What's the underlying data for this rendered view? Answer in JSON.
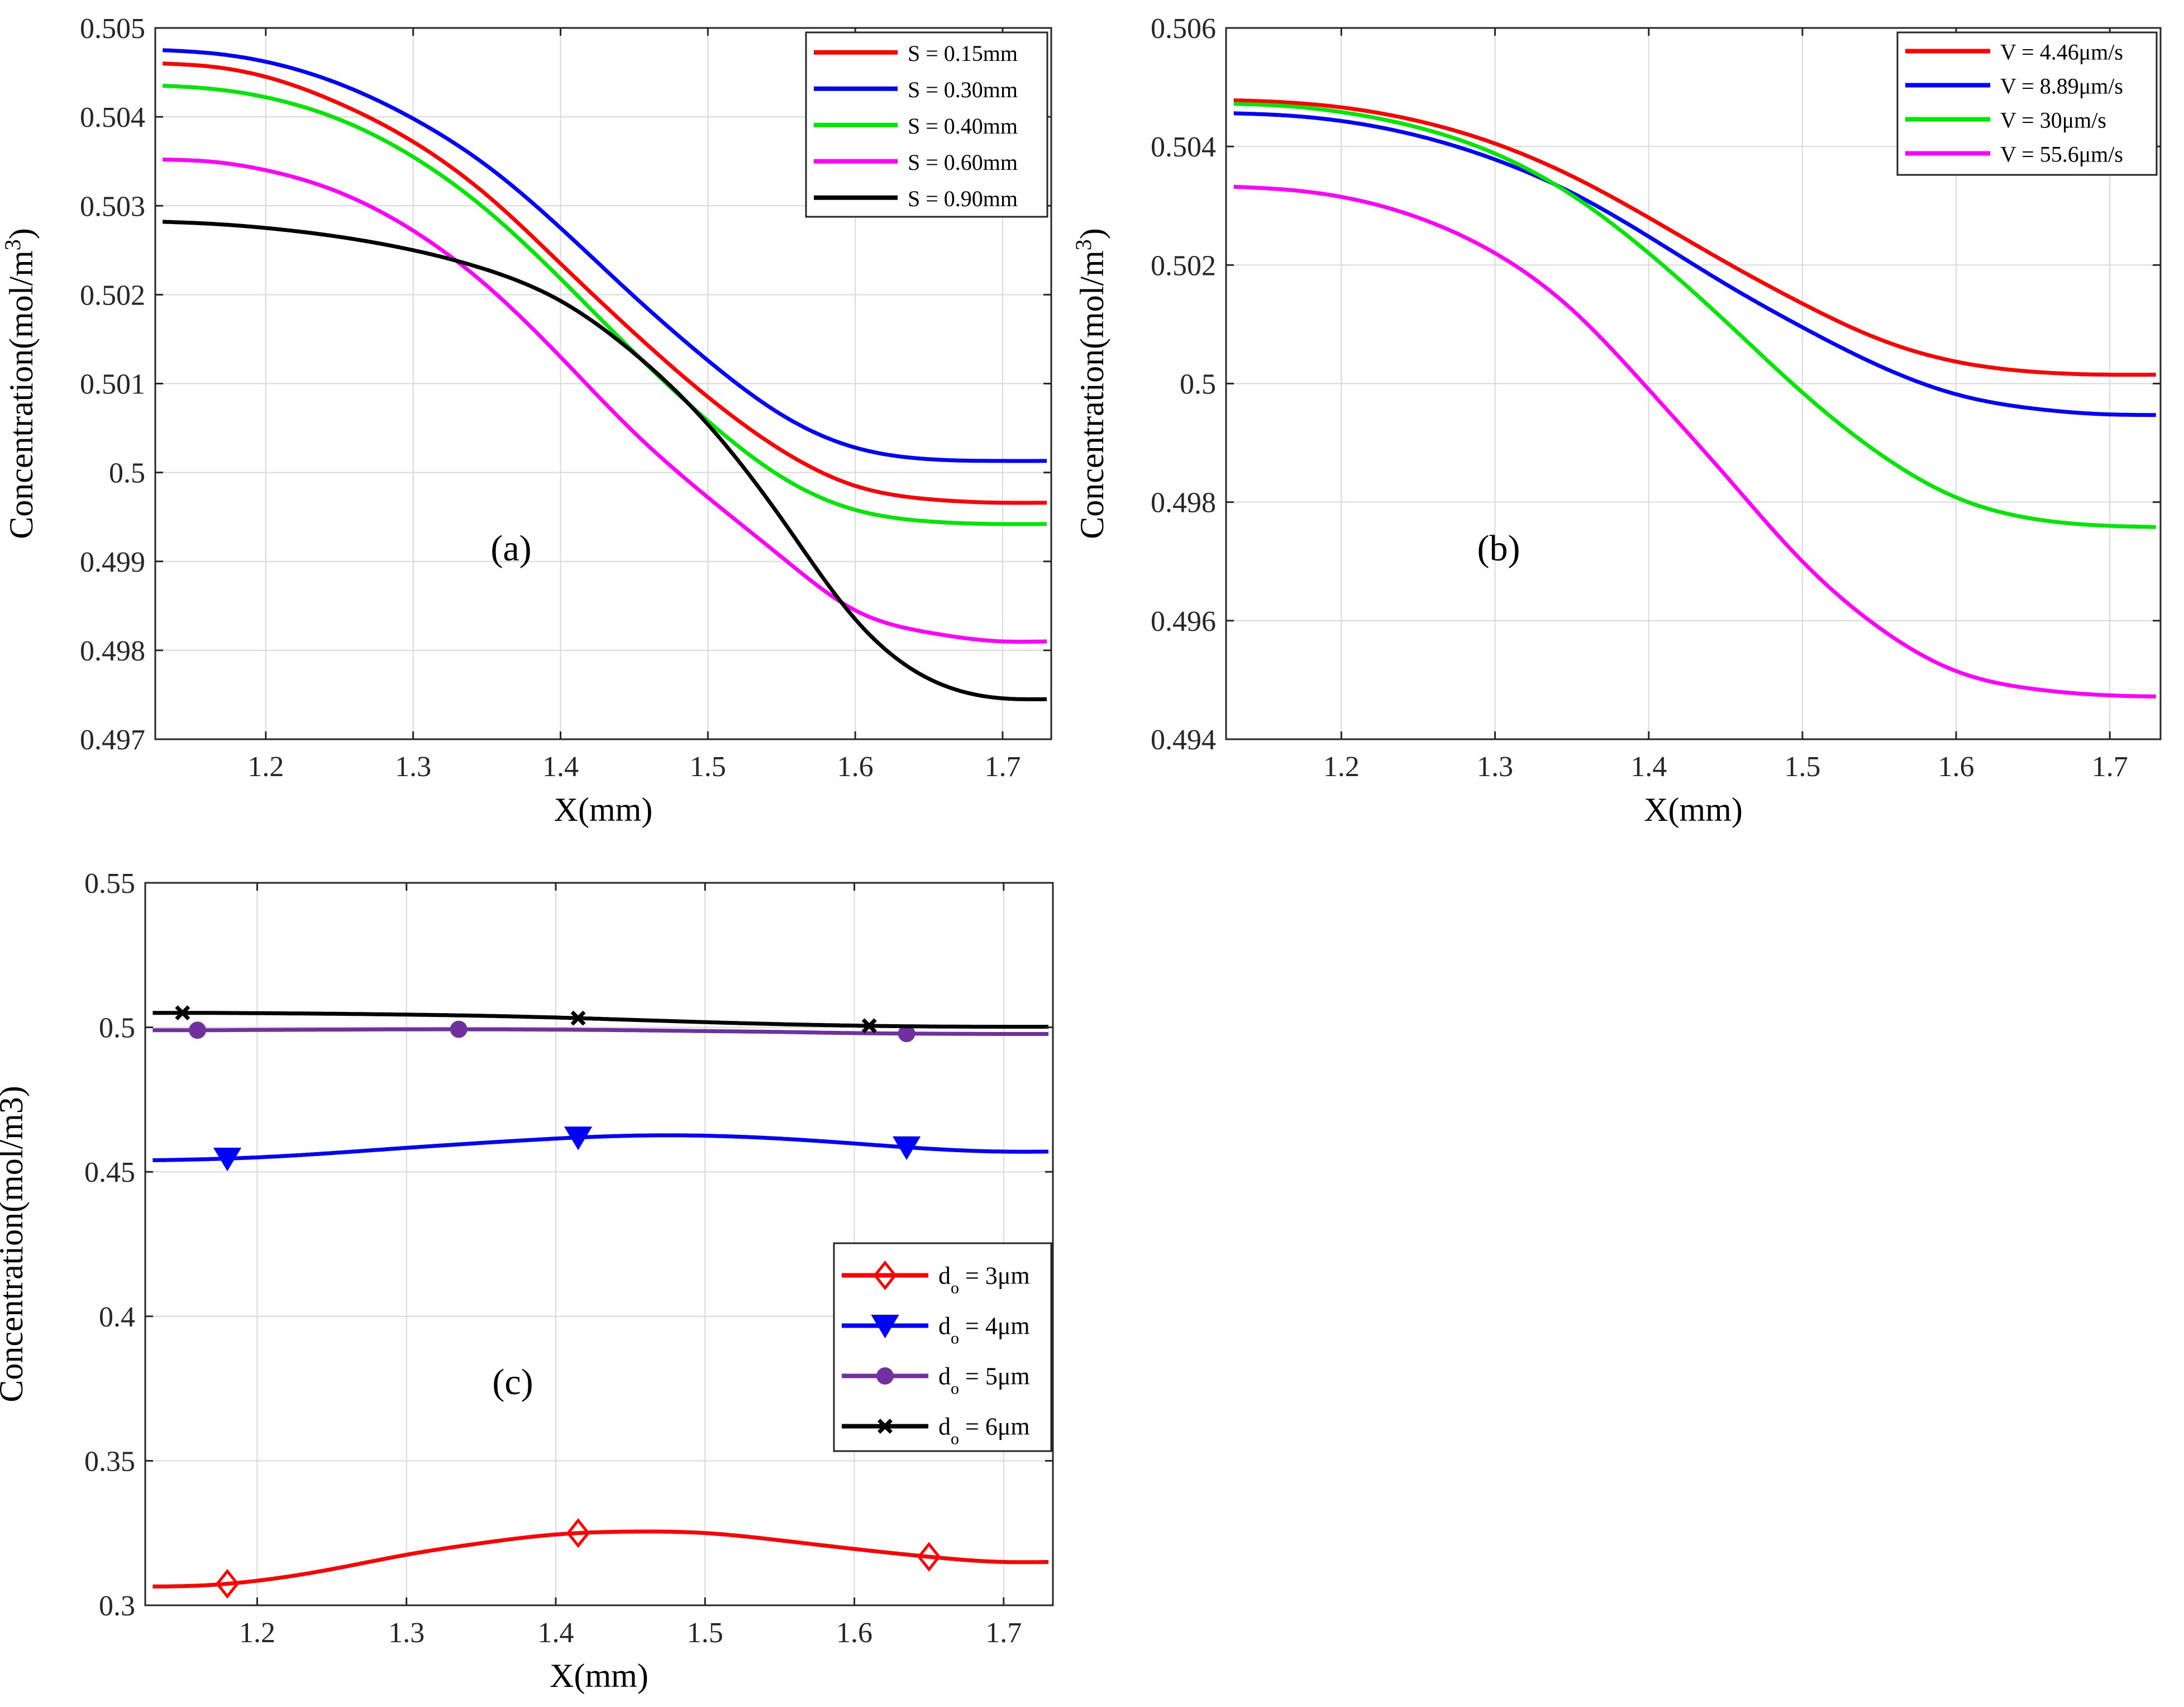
{
  "chart_data": [
    {
      "id": "a",
      "type": "line",
      "panel_label": "(a)",
      "xlabel": "X(mm)",
      "ylabel": {
        "main": "Concentration(mol/m",
        "sup": "3",
        "close": ")"
      },
      "xlim": [
        1.125,
        1.733
      ],
      "ylim": [
        0.497,
        0.505
      ],
      "xticks": [
        1.2,
        1.3,
        1.4,
        1.5,
        1.6,
        1.7
      ],
      "xtick_labels": [
        "1.2",
        "1.3",
        "1.4",
        "1.5",
        "1.6",
        "1.7"
      ],
      "yticks": [
        0.497,
        0.498,
        0.499,
        0.5,
        0.501,
        0.502,
        0.503,
        0.504,
        0.505
      ],
      "ytick_labels": [
        "0.497",
        "0.498",
        "0.499",
        "0.5",
        "0.501",
        "0.502",
        "0.503",
        "0.504",
        "0.505"
      ],
      "grid": true,
      "legend_position": "top-right",
      "x": [
        1.13,
        1.16,
        1.2,
        1.25,
        1.3,
        1.35,
        1.4,
        1.45,
        1.5,
        1.55,
        1.6,
        1.65,
        1.7,
        1.73
      ],
      "series": [
        {
          "name": "S = 0.15mm",
          "color": "#ff0000",
          "marker": null,
          "values": [
            0.5046,
            0.50457,
            0.50445,
            0.50415,
            0.50372,
            0.50312,
            0.50235,
            0.50157,
            0.50085,
            0.50025,
            0.49985,
            0.4997,
            0.49966,
            0.49966
          ]
        },
        {
          "name": "S = 0.30mm",
          "color": "#0000ff",
          "marker": null,
          "values": [
            0.50475,
            0.50472,
            0.50462,
            0.50437,
            0.50398,
            0.50345,
            0.50275,
            0.50198,
            0.50126,
            0.50065,
            0.50028,
            0.50015,
            0.50013,
            0.50013
          ]
        },
        {
          "name": "S = 0.40mm",
          "color": "#00e600",
          "marker": null,
          "values": [
            0.50435,
            0.50432,
            0.50422,
            0.50397,
            0.50355,
            0.50295,
            0.50218,
            0.50135,
            0.50058,
            0.49995,
            0.49958,
            0.49945,
            0.49942,
            0.49942
          ]
        },
        {
          "name": "S = 0.60mm",
          "color": "#ff00ff",
          "marker": null,
          "values": [
            0.50352,
            0.5035,
            0.5034,
            0.50315,
            0.50272,
            0.5021,
            0.5013,
            0.50045,
            0.49972,
            0.49905,
            0.49845,
            0.4982,
            0.4981,
            0.4981
          ]
        },
        {
          "name": "S = 0.90mm",
          "color": "#000000",
          "marker": null,
          "values": [
            0.50282,
            0.5028,
            0.50275,
            0.50265,
            0.5025,
            0.50228,
            0.50193,
            0.50134,
            0.50054,
            0.49948,
            0.49835,
            0.49768,
            0.49746,
            0.49745
          ]
        }
      ]
    },
    {
      "id": "b",
      "type": "line",
      "panel_label": "(b)",
      "xlabel": "X(mm)",
      "ylabel": {
        "main": "Concentration(mol/m",
        "sup": "3",
        "close": ")"
      },
      "xlim": [
        1.125,
        1.733
      ],
      "ylim": [
        0.494,
        0.506
      ],
      "xticks": [
        1.2,
        1.3,
        1.4,
        1.5,
        1.6,
        1.7
      ],
      "xtick_labels": [
        "1.2",
        "1.3",
        "1.4",
        "1.5",
        "1.6",
        "1.7"
      ],
      "yticks": [
        0.494,
        0.496,
        0.498,
        0.5,
        0.502,
        0.504,
        0.506
      ],
      "ytick_labels": [
        "0.494",
        "0.496",
        "0.498",
        "0.5",
        "0.502",
        "0.504",
        "0.506"
      ],
      "grid": true,
      "legend_position": "top-right",
      "x": [
        1.13,
        1.16,
        1.2,
        1.25,
        1.3,
        1.35,
        1.4,
        1.45,
        1.5,
        1.55,
        1.6,
        1.65,
        1.7,
        1.73
      ],
      "series": [
        {
          "name": "V = 4.46μm/s",
          "color": "#ff0000",
          "marker": null,
          "values": [
            0.50478,
            0.50475,
            0.50466,
            0.50443,
            0.50405,
            0.5035,
            0.5028,
            0.50205,
            0.50135,
            0.50075,
            0.50037,
            0.5002,
            0.50015,
            0.50015
          ]
        },
        {
          "name": "V = 8.89μm/s",
          "color": "#0000ff",
          "marker": null,
          "values": [
            0.50456,
            0.50453,
            0.50443,
            0.50418,
            0.50378,
            0.50322,
            0.50248,
            0.50168,
            0.50095,
            0.5003,
            0.49982,
            0.49958,
            0.49948,
            0.49947
          ]
        },
        {
          "name": "V = 30μm/s",
          "color": "#00e600",
          "marker": null,
          "values": [
            0.50472,
            0.50469,
            0.50458,
            0.50432,
            0.50388,
            0.50318,
            0.5022,
            0.50105,
            0.49985,
            0.49882,
            0.49808,
            0.49772,
            0.4976,
            0.49758
          ]
        },
        {
          "name": "V = 55.6μm/s",
          "color": "#ff00ff",
          "marker": null,
          "values": [
            0.50332,
            0.50328,
            0.50315,
            0.5028,
            0.5022,
            0.50125,
            0.4999,
            0.49845,
            0.497,
            0.49588,
            0.49515,
            0.49485,
            0.49474,
            0.49472
          ]
        }
      ]
    },
    {
      "id": "c",
      "type": "line",
      "panel_label": "(c)",
      "xlabel": "X(mm)",
      "ylabel": {
        "main": "Concentration(mol/m3)",
        "sup": "",
        "close": ""
      },
      "xlim": [
        1.125,
        1.733
      ],
      "ylim": [
        0.3,
        0.55
      ],
      "xticks": [
        1.2,
        1.3,
        1.4,
        1.5,
        1.6,
        1.7
      ],
      "xtick_labels": [
        "1.2",
        "1.3",
        "1.4",
        "1.5",
        "1.6",
        "1.7"
      ],
      "yticks": [
        0.3,
        0.35,
        0.4,
        0.45,
        0.5,
        0.55
      ],
      "ytick_labels": [
        "0.3",
        "0.35",
        "0.4",
        "0.45",
        "0.5",
        "0.55"
      ],
      "grid": true,
      "legend_position": "lower-right",
      "x": [
        1.13,
        1.16,
        1.2,
        1.25,
        1.3,
        1.35,
        1.4,
        1.45,
        1.5,
        1.55,
        1.6,
        1.65,
        1.7,
        1.73
      ],
      "series": [
        {
          "name": "do = 3μm",
          "legend_main": "d",
          "legend_sub": "o",
          "legend_rest": " = 3μm",
          "color": "#ff0000",
          "marker": "diamond",
          "marker_x": [
            1.18,
            1.415,
            1.65
          ],
          "values": [
            0.3065,
            0.3068,
            0.3085,
            0.3125,
            0.3175,
            0.3215,
            0.3245,
            0.3255,
            0.325,
            0.3225,
            0.3195,
            0.3168,
            0.315,
            0.315
          ]
        },
        {
          "name": "do = 4μm",
          "legend_main": "d",
          "legend_sub": "o",
          "legend_rest": " = 4μm",
          "color": "#0000ff",
          "marker": "triangle-down",
          "marker_x": [
            1.18,
            1.415,
            1.635
          ],
          "values": [
            0.454,
            0.4543,
            0.455,
            0.4565,
            0.4583,
            0.46,
            0.4615,
            0.4625,
            0.4625,
            0.4615,
            0.4598,
            0.458,
            0.457,
            0.457
          ]
        },
        {
          "name": "do = 5μm",
          "legend_main": "d",
          "legend_sub": "o",
          "legend_rest": " = 5μm",
          "color": "#7030a0",
          "marker": "circle",
          "marker_x": [
            1.16,
            1.335,
            1.635
          ],
          "values": [
            0.499,
            0.499,
            0.4991,
            0.4992,
            0.4993,
            0.4993,
            0.4992,
            0.499,
            0.4987,
            0.4984,
            0.498,
            0.4978,
            0.4977,
            0.4977
          ]
        },
        {
          "name": "do = 6μm",
          "legend_main": "d",
          "legend_sub": "o",
          "legend_rest": " = 6μm",
          "color": "#000000",
          "marker": "x",
          "marker_x": [
            1.15,
            1.415,
            1.61
          ],
          "values": [
            0.505,
            0.505,
            0.5049,
            0.5047,
            0.5044,
            0.504,
            0.5034,
            0.5026,
            0.5018,
            0.5011,
            0.5006,
            0.5003,
            0.5002,
            0.5002
          ]
        }
      ]
    }
  ]
}
